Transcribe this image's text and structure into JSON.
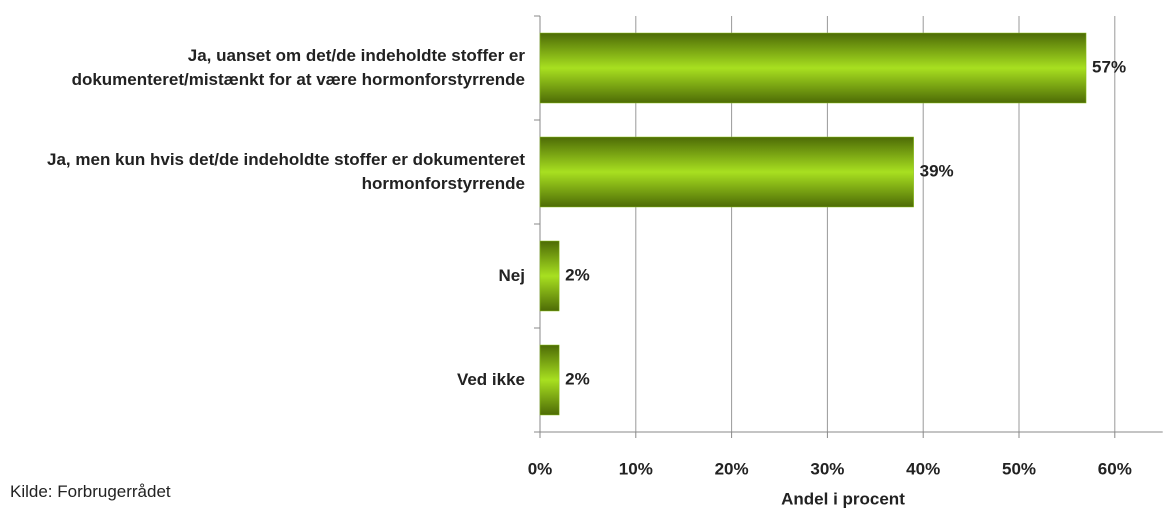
{
  "chart_data": {
    "type": "bar",
    "orientation": "horizontal",
    "categories": [
      "Ja, uanset om det/de indeholdte stoffer er dokumenteret/mistænkt for at være hormonforstyrrende",
      "Ja, men kun hvis det/de indeholdte stoffer er dokumenteret hormonforstyrrende",
      "Nej",
      "Ved ikke"
    ],
    "values": [
      57,
      39,
      2,
      2
    ],
    "value_labels": [
      "57%",
      "39%",
      "2%",
      "2%"
    ],
    "color": "#8cc21a",
    "xlim": [
      0,
      65
    ],
    "xticks": [
      {
        "value": 0,
        "label": "0%"
      },
      {
        "value": 10,
        "label": "10%"
      },
      {
        "value": 20,
        "label": "20%"
      },
      {
        "value": 30,
        "label": "30%"
      },
      {
        "value": 40,
        "label": "40%"
      },
      {
        "value": 50,
        "label": "50%"
      },
      {
        "value": 60,
        "label": "60%"
      }
    ],
    "grid": true,
    "x_label": "Andel i procent",
    "source": "Kilde: Forbrugerrådet"
  }
}
